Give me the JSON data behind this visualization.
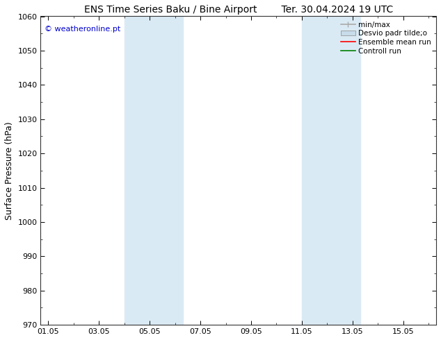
{
  "title_left": "ENS Time Series Baku / Bine Airport",
  "title_right": "Ter. 30.04.2024 19 UTC",
  "ylabel": "Surface Pressure (hPa)",
  "ylim": [
    970,
    1060
  ],
  "yticks": [
    970,
    980,
    990,
    1000,
    1010,
    1020,
    1030,
    1040,
    1050,
    1060
  ],
  "xtick_labels": [
    "01.05",
    "03.05",
    "05.05",
    "07.05",
    "09.05",
    "11.05",
    "13.05",
    "15.05"
  ],
  "xtick_positions": [
    0,
    2,
    4,
    6,
    8,
    10,
    12,
    14
  ],
  "xlim": [
    -0.3,
    15.3
  ],
  "shaded_bands": [
    {
      "x_start": 3.0,
      "x_end": 5.3,
      "color": "#daeaf5"
    },
    {
      "x_start": 10.0,
      "x_end": 12.3,
      "color": "#daeaf5"
    }
  ],
  "watermark_text": "© weatheronline.pt",
  "watermark_color": "#0000cc",
  "legend_labels": [
    "min/max",
    "Desvio padr tilde;o",
    "Ensemble mean run",
    "Controll run"
  ],
  "legend_colors": [
    "#aaaaaa",
    "#c8dcea",
    "#ff0000",
    "#008000"
  ],
  "bg_color": "#ffffff",
  "title_fontsize": 10,
  "tick_fontsize": 8,
  "ylabel_fontsize": 9,
  "legend_fontsize": 7.5,
  "watermark_fontsize": 8
}
